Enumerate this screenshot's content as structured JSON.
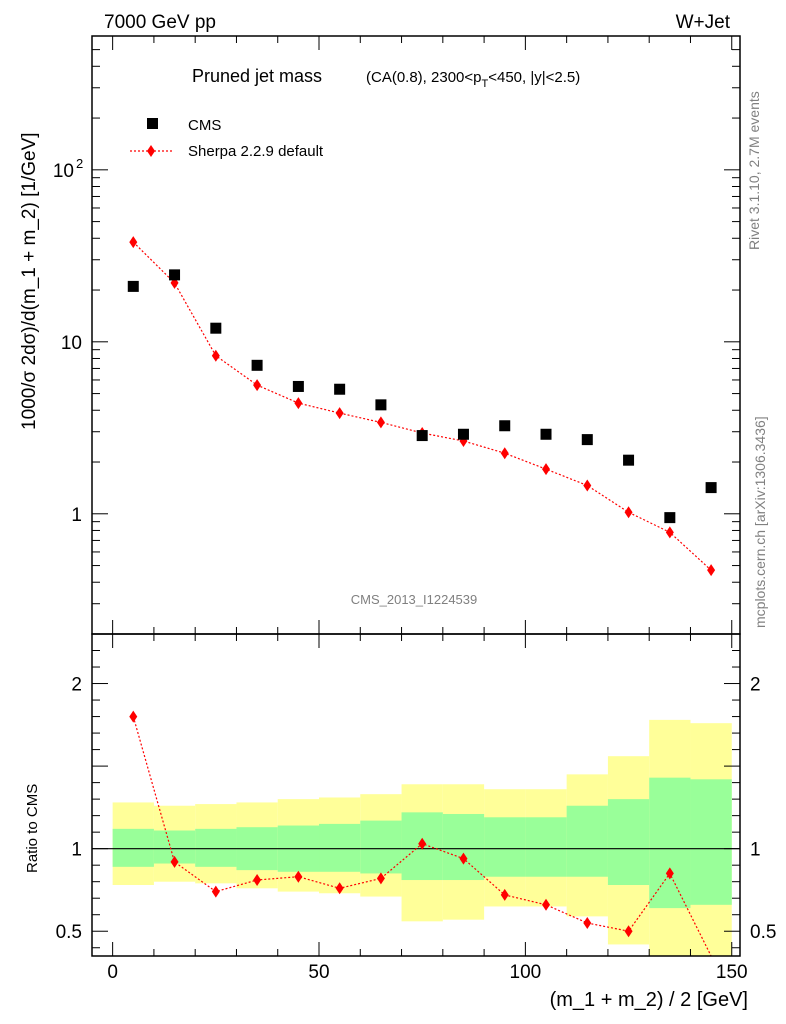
{
  "header": {
    "left": "7000 GeV pp",
    "right": "W+Jet"
  },
  "side_labels": {
    "rivet": "Rivet 3.1.10,  2.7M events",
    "mcplots": "mcplots.cern.ch [arXiv:1306.3436]"
  },
  "chart_data": [
    {
      "type": "scatter",
      "title_main": "Pruned jet mass",
      "title_sub": "(CA(0.8), 2300<p",
      "title_sub_T": "T",
      "title_sub_end": "<450, |y|<2.5)",
      "watermark": "CMS_2013_I1224539",
      "ylabel": "1000/σ 2dσ)/d(m_1 + m_2) [1/GeV]",
      "yscale": "log",
      "ylim": [
        0.2,
        600
      ],
      "xlim": [
        -5,
        152
      ],
      "ytick_labels": [
        {
          "value": 1,
          "label": "1"
        },
        {
          "value": 10,
          "label": "10"
        },
        {
          "value": 100,
          "label": "10",
          "sup": "2"
        }
      ],
      "legend_placement": "top-left",
      "series": [
        {
          "name": "CMS",
          "marker": "square",
          "color": "#000000",
          "x": [
            5,
            15,
            25,
            35,
            45,
            55,
            65,
            75,
            85,
            95,
            105,
            115,
            125,
            135,
            145
          ],
          "y": [
            21,
            24.5,
            12,
            7.3,
            5.5,
            5.3,
            4.3,
            2.85,
            2.9,
            3.25,
            2.9,
            2.7,
            2.05,
            0.95,
            1.42
          ]
        },
        {
          "name": "Sherpa 2.2.9 default",
          "marker": "diamond",
          "line": "dotted",
          "color": "#ff0000",
          "x": [
            5,
            15,
            25,
            35,
            45,
            55,
            65,
            75,
            85,
            95,
            105,
            115,
            125,
            135,
            145
          ],
          "y": [
            38,
            22,
            8.3,
            5.6,
            4.4,
            3.85,
            3.4,
            2.95,
            2.65,
            2.25,
            1.82,
            1.46,
            1.02,
            0.78,
            0.47
          ]
        }
      ]
    },
    {
      "type": "line",
      "ylabel": "Ratio to CMS",
      "xlabel": "(m_1 + m_2) / 2 [GeV]",
      "xlim": [
        -5,
        152
      ],
      "ylim": [
        0.35,
        2.3
      ],
      "xtick_labels": [
        {
          "value": 0,
          "label": "0"
        },
        {
          "value": 50,
          "label": "50"
        },
        {
          "value": 100,
          "label": "100"
        },
        {
          "value": 150,
          "label": "150"
        }
      ],
      "ytick_labels": [
        {
          "value": 0.5,
          "label": "0.5"
        },
        {
          "value": 1,
          "label": "1"
        },
        {
          "value": 2,
          "label": "2"
        }
      ],
      "bins": [
        0,
        10,
        20,
        30,
        40,
        50,
        60,
        70,
        80,
        90,
        100,
        110,
        120,
        130,
        140,
        150
      ],
      "yellow_band": {
        "lo": [
          0.78,
          0.8,
          0.79,
          0.76,
          0.74,
          0.73,
          0.71,
          0.56,
          0.57,
          0.65,
          0.65,
          0.59,
          0.42,
          0.3,
          0.3
        ],
        "hi": [
          1.28,
          1.26,
          1.27,
          1.28,
          1.3,
          1.31,
          1.33,
          1.39,
          1.39,
          1.36,
          1.36,
          1.45,
          1.56,
          1.78,
          1.76
        ]
      },
      "green_band": {
        "lo": [
          0.89,
          0.91,
          0.89,
          0.87,
          0.86,
          0.86,
          0.85,
          0.81,
          0.81,
          0.83,
          0.83,
          0.83,
          0.78,
          0.64,
          0.66
        ],
        "hi": [
          1.12,
          1.11,
          1.12,
          1.13,
          1.14,
          1.15,
          1.17,
          1.22,
          1.21,
          1.19,
          1.19,
          1.26,
          1.3,
          1.43,
          1.42
        ]
      },
      "series": [
        {
          "name": "Sherpa 2.2.9 default",
          "color": "#ff0000",
          "x": [
            5,
            15,
            25,
            35,
            45,
            55,
            65,
            75,
            85,
            95,
            105,
            115,
            125,
            135,
            145
          ],
          "y": [
            1.8,
            0.92,
            0.74,
            0.81,
            0.83,
            0.76,
            0.82,
            1.03,
            0.94,
            0.72,
            0.66,
            0.55,
            0.5,
            0.85,
            0.33
          ]
        }
      ]
    }
  ]
}
